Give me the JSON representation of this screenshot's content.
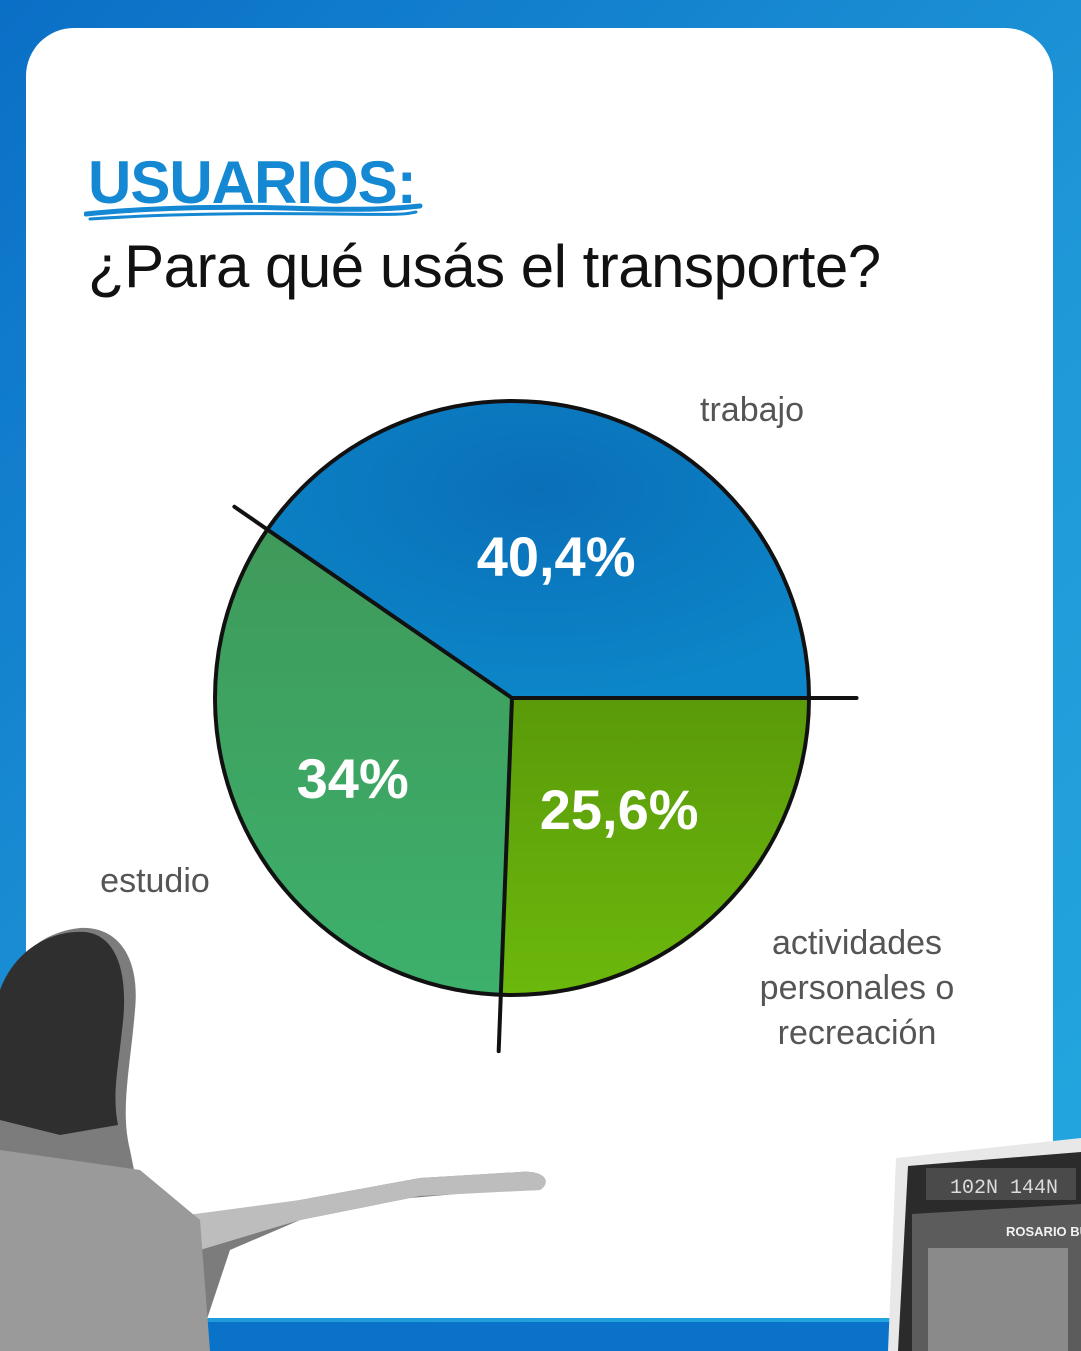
{
  "header": {
    "kicker": "USUARIOS:",
    "question": "¿Para qué usás el transporte?"
  },
  "colors": {
    "background": "#0a6fc6",
    "accent": "#1488d2",
    "trabajo": "#0a78c2",
    "estudio": "#3aa060",
    "actividades": "#5aa90a"
  },
  "chart_data": {
    "type": "pie",
    "title": "¿Para qué usás el transporte?",
    "slices": [
      {
        "label": "trabajo",
        "value": 40.4,
        "value_label": "40,4%"
      },
      {
        "label": "actividades personales o recreación",
        "value": 25.6,
        "value_label": "25,6%"
      },
      {
        "label": "estudio",
        "value": 34,
        "value_label": "34%"
      }
    ]
  },
  "labels": {
    "trabajo": "trabajo",
    "estudio": "estudio",
    "actividades_lines": [
      "actividades",
      "personales o",
      "recreación"
    ]
  },
  "decorations": {
    "left_photo": "woman-hailing-bus-photo",
    "right_photo": "bus-front-photo",
    "bus_sign": "102N 144N",
    "bus_brand": "ROSARIO BUS"
  }
}
